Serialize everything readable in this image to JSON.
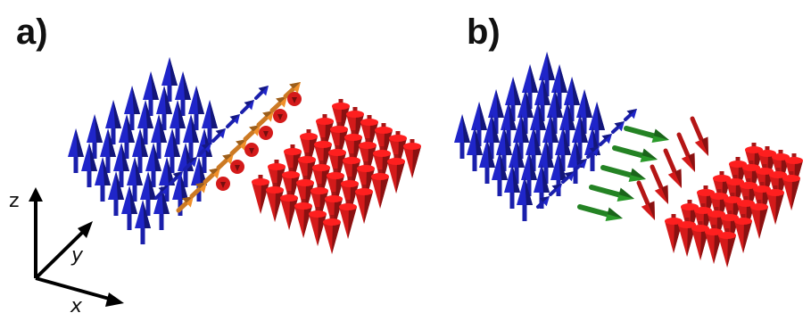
{
  "panels": [
    {
      "id": "a",
      "label": "a)"
    },
    {
      "id": "b",
      "label": "b)"
    }
  ],
  "axes": {
    "z": "z",
    "y": "y",
    "x": "x"
  },
  "colors": {
    "up": "#1f25c9",
    "down": "#d41a1a",
    "wall_in_plane": "#f0902a",
    "wall_transverse": "#2a9a2a",
    "axis": "#000000"
  },
  "icons": {
    "spin_up": "blue-arrow-up-icon",
    "spin_down": "red-cone-down-icon",
    "spin_in_plane": "orange-arrow-icon",
    "spin_transverse": "green-arrow-icon"
  }
}
